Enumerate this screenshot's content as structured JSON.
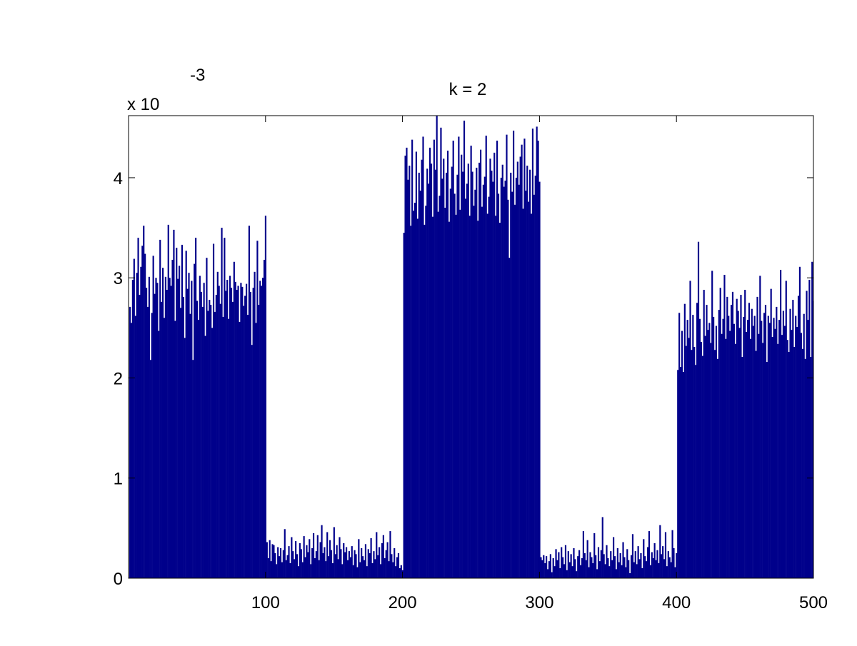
{
  "chart_data": {
    "type": "bar",
    "title": "k = 2",
    "multiplier_base": "x 10",
    "multiplier_exponent": "-3",
    "color": "#00008b",
    "xlim": [
      0,
      500
    ],
    "ylim": [
      0,
      4.62
    ],
    "xticks": [
      100,
      200,
      300,
      400,
      500
    ],
    "yticks": [
      0,
      1,
      2,
      3,
      4
    ],
    "x": [
      1,
      2,
      3,
      4,
      5,
      6,
      7,
      8,
      9,
      10,
      11,
      12,
      13,
      14,
      15,
      16,
      17,
      18,
      19,
      20,
      21,
      22,
      23,
      24,
      25,
      26,
      27,
      28,
      29,
      30,
      31,
      32,
      33,
      34,
      35,
      36,
      37,
      38,
      39,
      40,
      41,
      42,
      43,
      44,
      45,
      46,
      47,
      48,
      49,
      50,
      51,
      52,
      53,
      54,
      55,
      56,
      57,
      58,
      59,
      60,
      61,
      62,
      63,
      64,
      65,
      66,
      67,
      68,
      69,
      70,
      71,
      72,
      73,
      74,
      75,
      76,
      77,
      78,
      79,
      80,
      81,
      82,
      83,
      84,
      85,
      86,
      87,
      88,
      89,
      90,
      91,
      92,
      93,
      94,
      95,
      96,
      97,
      98,
      99,
      100,
      101,
      102,
      103,
      104,
      105,
      106,
      107,
      108,
      109,
      110,
      111,
      112,
      113,
      114,
      115,
      116,
      117,
      118,
      119,
      120,
      121,
      122,
      123,
      124,
      125,
      126,
      127,
      128,
      129,
      130,
      131,
      132,
      133,
      134,
      135,
      136,
      137,
      138,
      139,
      140,
      141,
      142,
      143,
      144,
      145,
      146,
      147,
      148,
      149,
      150,
      151,
      152,
      153,
      154,
      155,
      156,
      157,
      158,
      159,
      160,
      161,
      162,
      163,
      164,
      165,
      166,
      167,
      168,
      169,
      170,
      171,
      172,
      173,
      174,
      175,
      176,
      177,
      178,
      179,
      180,
      181,
      182,
      183,
      184,
      185,
      186,
      187,
      188,
      189,
      190,
      191,
      192,
      193,
      194,
      195,
      196,
      197,
      198,
      199,
      200,
      201,
      202,
      203,
      204,
      205,
      206,
      207,
      208,
      209,
      210,
      211,
      212,
      213,
      214,
      215,
      216,
      217,
      218,
      219,
      220,
      221,
      222,
      223,
      224,
      225,
      226,
      227,
      228,
      229,
      230,
      231,
      232,
      233,
      234,
      235,
      236,
      237,
      238,
      239,
      240,
      241,
      242,
      243,
      244,
      245,
      246,
      247,
      248,
      249,
      250,
      251,
      252,
      253,
      254,
      255,
      256,
      257,
      258,
      259,
      260,
      261,
      262,
      263,
      264,
      265,
      266,
      267,
      268,
      269,
      270,
      271,
      272,
      273,
      274,
      275,
      276,
      277,
      278,
      279,
      280,
      281,
      282,
      283,
      284,
      285,
      286,
      287,
      288,
      289,
      290,
      291,
      292,
      293,
      294,
      295,
      296,
      297,
      298,
      299,
      300,
      301,
      302,
      303,
      304,
      305,
      306,
      307,
      308,
      309,
      310,
      311,
      312,
      313,
      314,
      315,
      316,
      317,
      318,
      319,
      320,
      321,
      322,
      323,
      324,
      325,
      326,
      327,
      328,
      329,
      330,
      331,
      332,
      333,
      334,
      335,
      336,
      337,
      338,
      339,
      340,
      341,
      342,
      343,
      344,
      345,
      346,
      347,
      348,
      349,
      350,
      351,
      352,
      353,
      354,
      355,
      356,
      357,
      358,
      359,
      360,
      361,
      362,
      363,
      364,
      365,
      366,
      367,
      368,
      369,
      370,
      371,
      372,
      373,
      374,
      375,
      376,
      377,
      378,
      379,
      380,
      381,
      382,
      383,
      384,
      385,
      386,
      387,
      388,
      389,
      390,
      391,
      392,
      393,
      394,
      395,
      396,
      397,
      398,
      399,
      400,
      401,
      402,
      403,
      404,
      405,
      406,
      407,
      408,
      409,
      410,
      411,
      412,
      413,
      414,
      415,
      416,
      417,
      418,
      419,
      420,
      421,
      422,
      423,
      424,
      425,
      426,
      427,
      428,
      429,
      430,
      431,
      432,
      433,
      434,
      435,
      436,
      437,
      438,
      439,
      440,
      441,
      442,
      443,
      444,
      445,
      446,
      447,
      448,
      449,
      450,
      451,
      452,
      453,
      454,
      455,
      456,
      457,
      458,
      459,
      460,
      461,
      462,
      463,
      464,
      465,
      466,
      467,
      468,
      469,
      470,
      471,
      472,
      473,
      474,
      475,
      476,
      477,
      478,
      479,
      480,
      481,
      482,
      483,
      484,
      485,
      486,
      487,
      488,
      489,
      490,
      491,
      492,
      493,
      494,
      495,
      496,
      497,
      498,
      499,
      500
    ],
    "values": [
      2.71,
      2.55,
      2.98,
      3.19,
      2.62,
      3.05,
      3.4,
      2.83,
      3.11,
      3.32,
      3.52,
      3.24,
      2.9,
      2.71,
      3.01,
      2.18,
      2.65,
      3.22,
      2.84,
      3.0,
      2.95,
      2.47,
      3.38,
      2.76,
      3.1,
      2.6,
      3.01,
      2.88,
      3.53,
      3.0,
      2.92,
      3.18,
      3.48,
      2.57,
      3.3,
      2.99,
      3.12,
      2.7,
      3.33,
      2.81,
      2.4,
      3.27,
      2.89,
      3.05,
      2.64,
      2.97,
      2.18,
      3.14,
      3.4,
      2.77,
      2.58,
      3.02,
      2.86,
      2.71,
      2.95,
      2.42,
      3.2,
      2.67,
      2.78,
      2.73,
      2.5,
      3.34,
      2.66,
      2.83,
      3.06,
      2.92,
      2.74,
      3.5,
      2.61,
      3.4,
      2.87,
      2.98,
      2.59,
      3.02,
      2.9,
      2.76,
      3.16,
      2.96,
      2.88,
      2.92,
      2.56,
      2.95,
      2.91,
      2.72,
      2.82,
      2.94,
      2.63,
      3.52,
      2.86,
      2.33,
      2.9,
      3.06,
      2.55,
      3.37,
      2.73,
      2.97,
      2.92,
      3.0,
      3.18,
      3.62,
      0.36,
      0.2,
      0.38,
      0.17,
      0.34,
      0.33,
      0.25,
      0.14,
      0.31,
      0.22,
      0.3,
      0.16,
      0.28,
      0.49,
      0.18,
      0.23,
      0.32,
      0.15,
      0.41,
      0.27,
      0.19,
      0.37,
      0.24,
      0.12,
      0.35,
      0.29,
      0.16,
      0.42,
      0.21,
      0.33,
      0.26,
      0.39,
      0.14,
      0.3,
      0.45,
      0.2,
      0.27,
      0.43,
      0.18,
      0.36,
      0.53,
      0.25,
      0.31,
      0.17,
      0.46,
      0.22,
      0.38,
      0.28,
      0.15,
      0.51,
      0.24,
      0.33,
      0.19,
      0.41,
      0.29,
      0.14,
      0.35,
      0.26,
      0.31,
      0.18,
      0.27,
      0.21,
      0.32,
      0.13,
      0.28,
      0.24,
      0.11,
      0.39,
      0.16,
      0.3,
      0.22,
      0.18,
      0.34,
      0.12,
      0.29,
      0.25,
      0.4,
      0.15,
      0.27,
      0.19,
      0.46,
      0.23,
      0.31,
      0.14,
      0.35,
      0.43,
      0.2,
      0.28,
      0.36,
      0.17,
      0.47,
      0.24,
      0.16,
      0.3,
      0.12,
      0.21,
      0.25,
      0.1,
      0.13,
      0.08,
      3.45,
      4.22,
      4.3,
      3.98,
      4.12,
      3.52,
      4.38,
      3.67,
      3.75,
      4.26,
      3.59,
      4.05,
      3.87,
      4.18,
      4.41,
      3.53,
      3.72,
      4.09,
      3.94,
      4.3,
      4.14,
      3.61,
      4.38,
      4.08,
      4.62,
      3.66,
      3.82,
      4.5,
      3.99,
      4.19,
      3.7,
      4.05,
      4.27,
      3.56,
      3.89,
      4.11,
      4.37,
      3.84,
      3.63,
      4.03,
      4.41,
      3.68,
      4.23,
      4.06,
      4.57,
      3.79,
      3.94,
      4.14,
      3.62,
      4.32,
      4.06,
      3.72,
      3.88,
      4.1,
      3.57,
      4.15,
      4.28,
      3.71,
      3.93,
      4.01,
      4.42,
      3.64,
      3.81,
      4.19,
      4.07,
      3.96,
      4.25,
      3.62,
      4.37,
      3.84,
      3.55,
      4.0,
      4.13,
      3.91,
      3.97,
      4.43,
      3.78,
      3.2,
      4.05,
      3.86,
      4.47,
      3.73,
      4.0,
      4.16,
      3.93,
      4.21,
      4.33,
      3.69,
      4.39,
      3.87,
      4.12,
      3.76,
      4.08,
      3.64,
      4.49,
      3.83,
      4.02,
      4.51,
      4.37,
      3.96,
      0.21,
      0.18,
      0.23,
      0.15,
      0.22,
      0.09,
      0.17,
      0.24,
      0.06,
      0.2,
      0.12,
      0.29,
      0.18,
      0.26,
      0.1,
      0.31,
      0.21,
      0.14,
      0.33,
      0.08,
      0.27,
      0.16,
      0.24,
      0.12,
      0.3,
      0.19,
      0.07,
      0.22,
      0.28,
      0.13,
      0.2,
      0.47,
      0.25,
      0.18,
      0.38,
      0.11,
      0.26,
      0.21,
      0.15,
      0.45,
      0.23,
      0.09,
      0.31,
      0.17,
      0.28,
      0.61,
      0.24,
      0.14,
      0.33,
      0.2,
      0.12,
      0.27,
      0.18,
      0.41,
      0.22,
      0.09,
      0.3,
      0.16,
      0.25,
      0.13,
      0.36,
      0.21,
      0.11,
      0.29,
      0.18,
      0.05,
      0.23,
      0.44,
      0.16,
      0.27,
      0.14,
      0.32,
      0.19,
      0.25,
      0.1,
      0.39,
      0.22,
      0.17,
      0.31,
      0.47,
      0.13,
      0.26,
      0.2,
      0.35,
      0.18,
      0.28,
      0.15,
      0.53,
      0.24,
      0.32,
      0.19,
      0.46,
      0.12,
      0.27,
      0.21,
      0.16,
      0.48,
      0.3,
      0.11,
      0.25,
      2.08,
      2.65,
      2.11,
      2.47,
      2.06,
      2.74,
      2.32,
      2.58,
      2.4,
      2.97,
      2.28,
      2.63,
      2.31,
      2.13,
      2.75,
      3.36,
      2.59,
      2.36,
      2.22,
      2.88,
      2.42,
      2.73,
      2.48,
      2.55,
      2.35,
      3.07,
      2.61,
      2.28,
      2.52,
      2.19,
      2.68,
      2.9,
      2.44,
      2.59,
      3.03,
      2.39,
      2.81,
      2.62,
      2.47,
      2.73,
      2.86,
      2.54,
      2.34,
      2.79,
      2.67,
      2.5,
      2.83,
      2.21,
      2.61,
      2.88,
      2.46,
      2.58,
      2.75,
      2.39,
      2.69,
      2.52,
      2.62,
      2.27,
      2.81,
      2.44,
      3.02,
      2.57,
      2.35,
      2.65,
      2.73,
      2.16,
      2.62,
      2.55,
      2.89,
      2.41,
      2.6,
      2.49,
      2.71,
      2.34,
      2.58,
      3.08,
      2.43,
      2.67,
      2.52,
      2.97,
      2.38,
      2.26,
      2.69,
      2.48,
      2.78,
      2.31,
      2.62,
      2.51,
      2.82,
      3.11,
      2.45,
      2.29,
      2.64,
      2.19,
      2.87,
      2.58,
      2.98,
      2.21,
      3.16,
      2.77
    ]
  }
}
